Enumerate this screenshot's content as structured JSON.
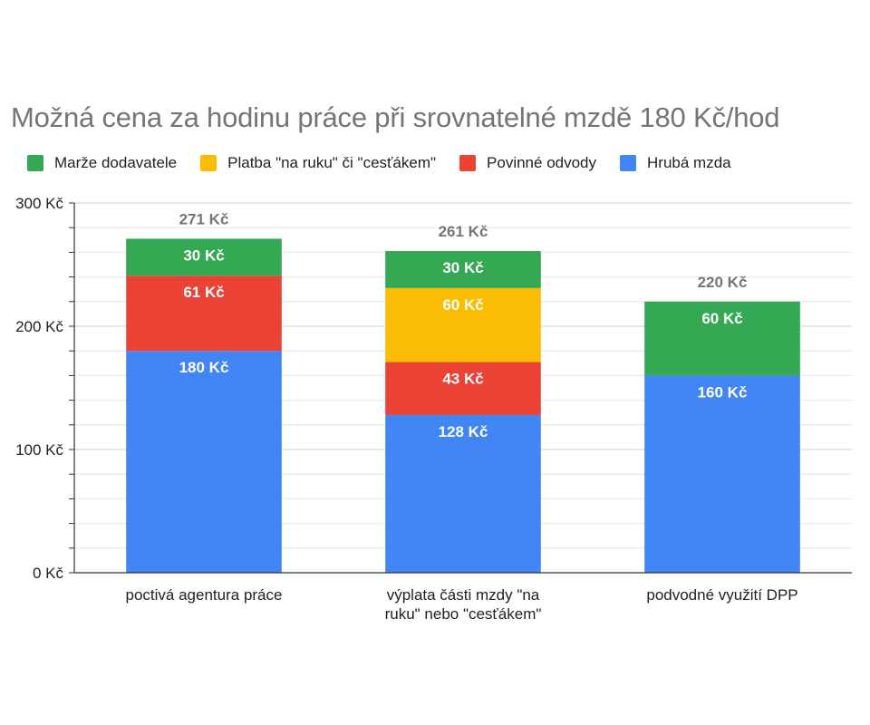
{
  "chart_data": {
    "type": "bar",
    "stacked": true,
    "title": "Možná cena za hodinu práce při srovnatelné mzdě 180 Kč/hod",
    "categories": [
      [
        "poctivá agentura práce"
      ],
      [
        "výplata části mzdy \"na",
        "ruku\" nebo \"cesťákem\""
      ],
      [
        "podvodné využití DPP"
      ]
    ],
    "series": [
      {
        "name": "Hrubá mzda",
        "color": "#4285f4",
        "values": [
          180,
          128,
          160
        ]
      },
      {
        "name": "Povinné odvody",
        "color": "#ea4335",
        "values": [
          61,
          43,
          0
        ]
      },
      {
        "name": "Platba \"na ruku\" či \"cesťákem\"",
        "color": "#fbbc04",
        "values": [
          0,
          60,
          0
        ]
      },
      {
        "name": "Marže dodavatele",
        "color": "#34a853",
        "values": [
          30,
          30,
          60
        ]
      }
    ],
    "segment_labels": [
      [
        "180 Kč",
        "61 Kč",
        "",
        "30 Kč"
      ],
      [
        "128 Kč",
        "43 Kč",
        "60 Kč",
        "30 Kč"
      ],
      [
        "160 Kč",
        "",
        "",
        "60 Kč"
      ]
    ],
    "totals": [
      271,
      261,
      220
    ],
    "total_labels": [
      "271 Kč",
      "261 Kč",
      "220 Kč"
    ],
    "legend_order": [
      "Marže dodavatele",
      "Platba \"na ruku\" či \"cesťákem\"",
      "Povinné odvody",
      "Hrubá mzda"
    ],
    "legend_position": "top",
    "ylim": [
      0,
      300
    ],
    "yticks": [
      0,
      100,
      200,
      300
    ],
    "ytick_labels": [
      "0 Kč",
      "100 Kč",
      "200 Kč",
      "300 Kč"
    ],
    "grid": true,
    "xlabel": "",
    "ylabel": ""
  }
}
